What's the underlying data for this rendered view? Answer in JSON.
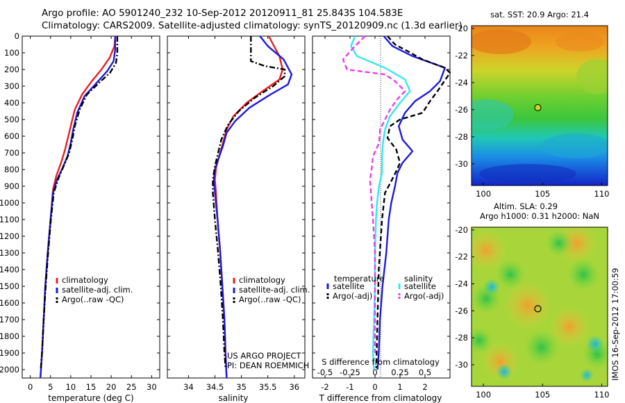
{
  "title_line1": "Argo profile: AO 5901240_232 10-Sep-2012 20120911_81 25.843S 104.583E",
  "title_line2": "Climatology: CARS2009. Satellite-adjusted climatology: synTS_20120909.nc (1.3d earlier)",
  "stamp": "IMOS 16-Sep-2012 17:00:59",
  "colors": {
    "climatology": "#e8201e",
    "satellite": "#1a1adc",
    "argo": "#000000",
    "sal_sat": "#33e8ee",
    "sal_argo": "#ee3aee"
  },
  "chart_data": [
    {
      "type": "line",
      "xlabel": "temperature (deg C)",
      "xlim": [
        -2,
        32
      ],
      "ylim": [
        2050,
        0
      ],
      "xticks": [
        "0",
        "5",
        "10",
        "15",
        "20",
        "25",
        "30"
      ],
      "yticks": [
        "0",
        "100",
        "200",
        "300",
        "400",
        "500",
        "600",
        "700",
        "800",
        "900",
        "1000",
        "1100",
        "1200",
        "1300",
        "1400",
        "1500",
        "1600",
        "1700",
        "1800",
        "1900",
        "2000"
      ],
      "legend": [
        "climatology",
        "satellite-adj. clim.",
        "Argo(..raw -QC)"
      ],
      "series": [
        {
          "name": "climatology",
          "style": "solid",
          "points": [
            [
              21,
              0
            ],
            [
              20.8,
              60
            ],
            [
              19.6,
              130
            ],
            [
              17.6,
              200
            ],
            [
              15.2,
              270
            ],
            [
              12.8,
              350
            ],
            [
              11,
              440
            ],
            [
              10.2,
              520
            ],
            [
              9.4,
              600
            ],
            [
              8.6,
              680
            ],
            [
              7.6,
              760
            ],
            [
              6.4,
              840
            ],
            [
              5.6,
              920
            ],
            [
              5,
              1100
            ],
            [
              4.3,
              1300
            ],
            [
              3.7,
              1500
            ],
            [
              3.3,
              1700
            ],
            [
              2.9,
              1900
            ],
            [
              2.5,
              2050
            ]
          ]
        },
        {
          "name": "satellite-adj. clim.",
          "style": "solid",
          "points": [
            [
              21,
              0
            ],
            [
              21,
              80
            ],
            [
              20.6,
              150
            ],
            [
              19,
              210
            ],
            [
              16.4,
              280
            ],
            [
              13.4,
              360
            ],
            [
              11.6,
              460
            ],
            [
              10.6,
              560
            ],
            [
              10,
              640
            ],
            [
              9.2,
              720
            ],
            [
              8,
              790
            ],
            [
              6.6,
              860
            ],
            [
              5.6,
              940
            ],
            [
              5,
              1100
            ],
            [
              4.3,
              1300
            ],
            [
              3.7,
              1500
            ],
            [
              3.3,
              1700
            ],
            [
              2.9,
              1900
            ],
            [
              2.5,
              2050
            ]
          ]
        },
        {
          "name": "Argo(..raw -QC)",
          "style": "dashdot",
          "points": [
            [
              21.5,
              0
            ],
            [
              21.5,
              100
            ],
            [
              21.2,
              160
            ],
            [
              19.7,
              220
            ],
            [
              17,
              280
            ],
            [
              14,
              350
            ],
            [
              12.2,
              440
            ],
            [
              11,
              540
            ],
            [
              10.4,
              620
            ],
            [
              9.6,
              700
            ],
            [
              8.4,
              770
            ],
            [
              7,
              850
            ],
            [
              5.8,
              940
            ],
            [
              5.1,
              1100
            ],
            [
              4.4,
              1300
            ],
            [
              3.8,
              1500
            ],
            [
              3.3,
              1700
            ],
            [
              2.9,
              1900
            ],
            [
              2.6,
              1990
            ]
          ]
        }
      ]
    },
    {
      "type": "line",
      "xlabel": "salinity",
      "xlim": [
        33.6,
        36.2
      ],
      "ylim": [
        2050,
        0
      ],
      "xticks": [
        "34",
        "34.5",
        "35",
        "35.5",
        "36"
      ],
      "legend": [
        "climatology",
        "satellite-adj. clim.",
        "Argo(..raw -QC)"
      ],
      "annotation": [
        "US ARGO PROJECT",
        "PI: DEAN ROEMMICH"
      ],
      "series": [
        {
          "name": "climatology",
          "style": "solid",
          "points": [
            [
              35.52,
              0
            ],
            [
              35.6,
              50
            ],
            [
              35.72,
              120
            ],
            [
              35.78,
              200
            ],
            [
              35.72,
              260
            ],
            [
              35.4,
              330
            ],
            [
              35.1,
              400
            ],
            [
              34.85,
              480
            ],
            [
              34.72,
              560
            ],
            [
              34.65,
              640
            ],
            [
              34.58,
              720
            ],
            [
              34.52,
              790
            ],
            [
              34.5,
              860
            ],
            [
              34.52,
              940
            ],
            [
              34.55,
              1100
            ],
            [
              34.6,
              1300
            ],
            [
              34.64,
              1500
            ],
            [
              34.68,
              1700
            ],
            [
              34.7,
              1900
            ],
            [
              34.72,
              2050
            ]
          ]
        },
        {
          "name": "satellite-adj. clim.",
          "style": "solid",
          "points": [
            [
              35.35,
              0
            ],
            [
              35.5,
              60
            ],
            [
              35.8,
              140
            ],
            [
              35.95,
              230
            ],
            [
              35.88,
              290
            ],
            [
              35.55,
              350
            ],
            [
              35.15,
              430
            ],
            [
              34.88,
              510
            ],
            [
              34.72,
              580
            ],
            [
              34.65,
              660
            ],
            [
              34.56,
              740
            ],
            [
              34.5,
              800
            ],
            [
              34.48,
              860
            ],
            [
              34.5,
              940
            ],
            [
              34.55,
              1100
            ],
            [
              34.6,
              1300
            ],
            [
              34.64,
              1500
            ],
            [
              34.68,
              1700
            ],
            [
              34.7,
              1900
            ],
            [
              34.72,
              2050
            ]
          ]
        },
        {
          "name": "Argo(..raw -QC)",
          "style": "dashdot",
          "points": [
            [
              35.18,
              0
            ],
            [
              35.18,
              150
            ],
            [
              35.45,
              180
            ],
            [
              35.82,
              200
            ],
            [
              35.82,
              240
            ],
            [
              35.6,
              300
            ],
            [
              35.25,
              370
            ],
            [
              34.95,
              450
            ],
            [
              34.75,
              530
            ],
            [
              34.62,
              620
            ],
            [
              34.56,
              700
            ],
            [
              34.5,
              780
            ],
            [
              34.46,
              860
            ],
            [
              34.46,
              940
            ],
            [
              34.5,
              1100
            ],
            [
              34.56,
              1300
            ],
            [
              34.61,
              1500
            ],
            [
              34.65,
              1700
            ],
            [
              34.68,
              1900
            ],
            [
              34.7,
              1990
            ]
          ]
        }
      ]
    },
    {
      "type": "line",
      "xlabel": "T difference from climatology",
      "xlabel_top": "S difference from climatology",
      "xlim": [
        -2.5,
        3
      ],
      "ylim": [
        2050,
        0
      ],
      "sal_diff_scale": 4,
      "xticks": [
        "-2",
        "-1",
        "0",
        "1",
        "2"
      ],
      "xticks_top": [
        "-0.5",
        "-0.25",
        "0",
        "0.25",
        "0.5"
      ],
      "legend_headers": [
        "temperature",
        "salinity"
      ],
      "legend": [
        "satellite",
        "Argo(-adj)",
        "satellite",
        "Argo(-adj)"
      ],
      "series": [
        {
          "name": "satellite",
          "style": "solid",
          "points": [
            [
              0.35,
              0
            ],
            [
              0.7,
              60
            ],
            [
              1.5,
              120
            ],
            [
              2.8,
              190
            ],
            [
              2.6,
              270
            ],
            [
              2.2,
              330
            ],
            [
              1.6,
              390
            ],
            [
              1.2,
              460
            ],
            [
              0.95,
              540
            ],
            [
              1.1,
              620
            ],
            [
              1.5,
              690
            ],
            [
              1.1,
              760
            ],
            [
              0.9,
              820
            ],
            [
              0.8,
              900
            ],
            [
              0.65,
              1000
            ],
            [
              0.55,
              1100
            ],
            [
              0.45,
              1300
            ],
            [
              0.3,
              1500
            ],
            [
              0.2,
              1700
            ],
            [
              0.15,
              1900
            ],
            [
              0.1,
              2000
            ]
          ]
        },
        {
          "name": "Argo(-adj)",
          "style": "dashed",
          "points": [
            [
              0.5,
              0
            ],
            [
              0.8,
              50
            ],
            [
              1.3,
              90
            ],
            [
              1.9,
              140
            ],
            [
              2.8,
              190
            ],
            [
              3,
              220
            ],
            [
              2.5,
              330
            ],
            [
              2.2,
              390
            ],
            [
              1.9,
              460
            ],
            [
              1.0,
              500
            ],
            [
              0.6,
              540
            ],
            [
              0.5,
              610
            ],
            [
              0.85,
              680
            ],
            [
              1.0,
              760
            ],
            [
              0.85,
              810
            ],
            [
              0.65,
              870
            ],
            [
              0.4,
              940
            ],
            [
              0.28,
              1100
            ],
            [
              0.15,
              1400
            ],
            [
              0.1,
              1700
            ],
            [
              0.05,
              1990
            ]
          ]
        },
        {
          "name": "satellite",
          "style": "solid",
          "axis": "salinity",
          "points": [
            [
              -0.2,
              0
            ],
            [
              -0.24,
              60
            ],
            [
              -0.18,
              120
            ],
            [
              0.1,
              190
            ],
            [
              0.3,
              260
            ],
            [
              0.35,
              330
            ],
            [
              0.25,
              400
            ],
            [
              0.15,
              480
            ],
            [
              0.1,
              560
            ],
            [
              0.08,
              640
            ],
            [
              0.07,
              720
            ],
            [
              0.07,
              820
            ],
            [
              0.04,
              900
            ],
            [
              0.02,
              1000
            ],
            [
              0.01,
              1100
            ],
            [
              0,
              1300
            ],
            [
              0,
              1500
            ],
            [
              -0.01,
              1700
            ],
            [
              -0.02,
              1900
            ],
            [
              -0.01,
              2000
            ]
          ]
        },
        {
          "name": "Argo(-adj)",
          "style": "dashed",
          "axis": "salinity",
          "points": [
            [
              -0.1,
              0
            ],
            [
              -0.2,
              60
            ],
            [
              -0.32,
              140
            ],
            [
              -0.28,
              200
            ],
            [
              0.1,
              230
            ],
            [
              0.2,
              270
            ],
            [
              0.3,
              330
            ],
            [
              0.22,
              380
            ],
            [
              0.15,
              440
            ],
            [
              0.1,
              500
            ],
            [
              0.05,
              560
            ],
            [
              0.04,
              640
            ],
            [
              -0.02,
              720
            ],
            [
              -0.03,
              780
            ],
            [
              -0.05,
              860
            ],
            [
              -0.04,
              940
            ],
            [
              -0.02,
              1100
            ],
            [
              0,
              1300
            ],
            [
              0,
              1500
            ],
            [
              0,
              1700
            ],
            [
              0,
              1900
            ]
          ]
        }
      ]
    },
    {
      "type": "heatmap",
      "title": "sat. SST: 20.9 Argo: 21.4",
      "xlim": [
        99,
        110.5
      ],
      "ylim": [
        -31.6,
        -19.8
      ],
      "xticks": [
        "100",
        "105",
        "110"
      ],
      "yticks": [
        "-20",
        "-22",
        "-24",
        "-26",
        "-28",
        "-30"
      ],
      "marker": [
        104.6,
        -25.85
      ],
      "rows_top_to_bottom": [
        0.92,
        0.86,
        0.8,
        0.75,
        0.68,
        0.6,
        0.54,
        0.45,
        0.36,
        0.26,
        0.17,
        0.08
      ]
    },
    {
      "type": "heatmap",
      "title": "Altim. SLA: 0.29",
      "subtitle": "Argo h1000: 0.31 h2000: NaN",
      "xlim": [
        99,
        110.5
      ],
      "ylim": [
        -31.6,
        -19.8
      ],
      "xticks": [
        "100",
        "105",
        "110"
      ],
      "yticks": [
        "-20",
        "-22",
        "-24",
        "-26",
        "-28",
        "-30"
      ],
      "marker": [
        104.6,
        -25.85
      ]
    }
  ]
}
